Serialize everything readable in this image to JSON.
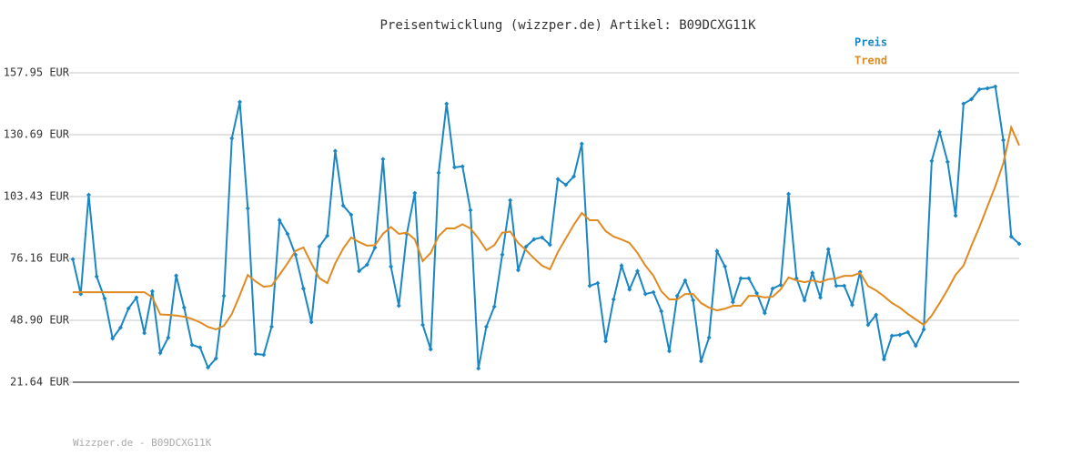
{
  "chart_data": {
    "type": "line",
    "title": "Preisentwicklung (wizzper.de) Artikel: B09DCXG11K",
    "footer": "Wizzper.de - B09DCXG11K",
    "categories": [
      null,
      null,
      null,
      null,
      null,
      null,
      null,
      null,
      null,
      null,
      null,
      null,
      null,
      null,
      null,
      null,
      null,
      null,
      null,
      null,
      null,
      null,
      null,
      null,
      null,
      null,
      null,
      null,
      null,
      null,
      null,
      null,
      null,
      null,
      null,
      null,
      null,
      null,
      null,
      null,
      null,
      null,
      null,
      null,
      null,
      null,
      null,
      null,
      null,
      null,
      null,
      null,
      null,
      null,
      null,
      null,
      null,
      null,
      null,
      null,
      null,
      null,
      null,
      null,
      null,
      null,
      null,
      null,
      null,
      null,
      null,
      null,
      null,
      null,
      null,
      null,
      null,
      null,
      null,
      null,
      null,
      null,
      null,
      null,
      null,
      null,
      null,
      null,
      null,
      null,
      null,
      null,
      null,
      null,
      null,
      null,
      null,
      null,
      null,
      null,
      null,
      null,
      null,
      null,
      null,
      null,
      null,
      null,
      null,
      null,
      null,
      null,
      null,
      null,
      null,
      null,
      null,
      null,
      null,
      null
    ],
    "series": [
      {
        "name": "Preis",
        "color": "#1a87c4",
        "markers": true,
        "values": [
          75.8,
          60.5,
          104.2,
          68.2,
          58.5,
          40.9,
          45.7,
          54.1,
          58.9,
          43.3,
          61.7,
          34.5,
          41.3,
          68.6,
          54.5,
          38.1,
          36.9,
          28.1,
          32.1,
          59.7,
          129.1,
          145.1,
          98.2,
          34.1,
          33.7,
          46.1,
          93.0,
          87.0,
          77.8,
          62.9,
          48.1,
          81.4,
          86.2,
          123.5,
          99.4,
          95.4,
          70.6,
          73.4,
          81.0,
          119.9,
          72.6,
          55.3,
          87.0,
          105.0,
          46.9,
          36.1,
          113.9,
          144.3,
          116.3,
          116.7,
          97.4,
          27.7,
          46.1,
          54.9,
          77.8,
          101.8,
          71.0,
          81.4,
          84.6,
          85.4,
          82.2,
          111.1,
          108.6,
          112.3,
          126.7,
          64.1,
          65.3,
          39.7,
          58.1,
          73.0,
          62.5,
          70.6,
          60.5,
          61.3,
          52.9,
          35.3,
          59.7,
          66.5,
          57.7,
          30.9,
          41.3,
          79.4,
          72.6,
          56.9,
          67.4,
          67.4,
          60.9,
          52.1,
          62.9,
          64.5,
          104.6,
          67.4,
          57.7,
          69.8,
          58.9,
          80.2,
          64.1,
          64.1,
          55.7,
          70.2,
          46.9,
          51.3,
          31.7,
          42.1,
          42.5,
          43.7,
          37.7,
          44.9,
          119.1,
          131.9,
          118.7,
          95.0,
          144.3,
          146.3,
          150.7,
          151.1,
          151.9,
          128.3,
          85.8,
          82.6
        ]
      },
      {
        "name": "Trend",
        "color": "#e08a20",
        "markers": false,
        "values": [
          61.3,
          61.3,
          61.3,
          61.3,
          61.3,
          61.3,
          61.3,
          61.3,
          61.3,
          61.3,
          59,
          51.5,
          51.3,
          51,
          50.5,
          49.5,
          48,
          46,
          44.9,
          46.5,
          51.7,
          60,
          68.9,
          66,
          63.7,
          64.1,
          69,
          74,
          79.5,
          81,
          74,
          67.5,
          65.3,
          74,
          80.5,
          85.4,
          83.4,
          81.8,
          82,
          87,
          90,
          87,
          87.5,
          84.6,
          75,
          78.6,
          86,
          89.4,
          89.4,
          91.2,
          89.4,
          85,
          79.8,
          82,
          87.5,
          88,
          83,
          79.8,
          76.2,
          73,
          71.4,
          79,
          85,
          91,
          96.2,
          93,
          93,
          88.2,
          85.8,
          84.5,
          83,
          78.6,
          73,
          68.6,
          61.7,
          58.1,
          58.1,
          60.5,
          60.5,
          56.5,
          54.5,
          53.3,
          54,
          55.3,
          55.3,
          59.7,
          59.7,
          59,
          59.3,
          62.5,
          67.8,
          66.5,
          65.7,
          66.5,
          65.7,
          67,
          67.4,
          68.5,
          68.5,
          69.8,
          64,
          62.1,
          59.5,
          56.5,
          54.5,
          51.7,
          49.3,
          46.9,
          51,
          56.5,
          62.5,
          68.9,
          73,
          81.8,
          90,
          99,
          108,
          118,
          133.9,
          125.9
        ]
      }
    ],
    "ylim": [
      21.64,
      157.95
    ],
    "yticks": [
      {
        "value": 21.64,
        "label": "21.64 EUR"
      },
      {
        "value": 48.9,
        "label": "48.90 EUR"
      },
      {
        "value": 76.16,
        "label": "76.16 EUR"
      },
      {
        "value": 103.43,
        "label": "103.43 EUR"
      },
      {
        "value": 130.69,
        "label": "130.69 EUR"
      },
      {
        "value": 157.95,
        "label": "157.95 EUR"
      }
    ],
    "grid": true
  }
}
